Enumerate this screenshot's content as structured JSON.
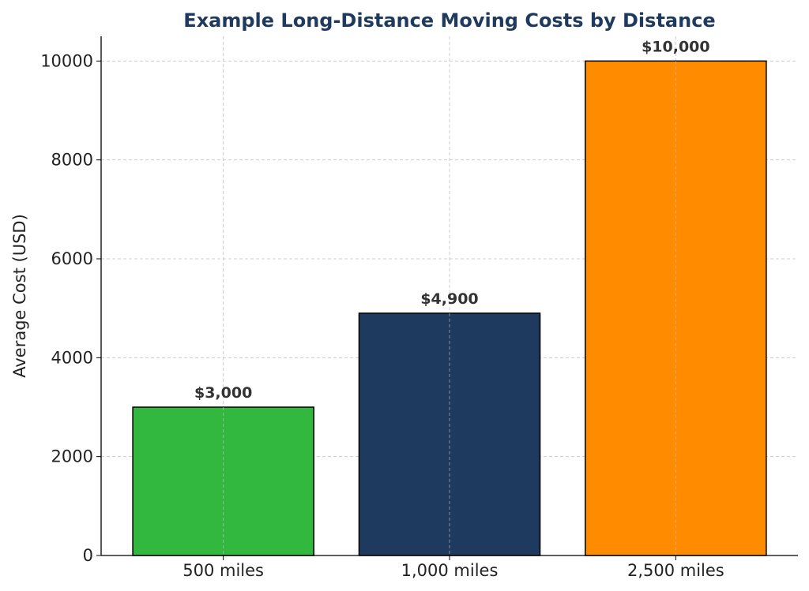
{
  "chart_data": {
    "type": "bar",
    "title": "Example Long-Distance Moving Costs by Distance",
    "xlabel": "",
    "ylabel": "Average Cost (USD)",
    "categories": [
      "500 miles",
      "1,000 miles",
      "2,500 miles"
    ],
    "values": [
      3000,
      4900,
      10000
    ],
    "data_labels": [
      "$3,000",
      "$4,900",
      "$10,000"
    ],
    "colors": [
      "#32b83e",
      "#1f3a5f",
      "#ff8c00"
    ],
    "title_color": "#1f3a5f",
    "ylim": [
      0,
      10500
    ],
    "yticks": [
      0,
      2000,
      4000,
      6000,
      8000,
      10000
    ],
    "ytick_labels": [
      "0",
      "2000",
      "4000",
      "6000",
      "8000",
      "10000"
    ],
    "grid": true
  }
}
